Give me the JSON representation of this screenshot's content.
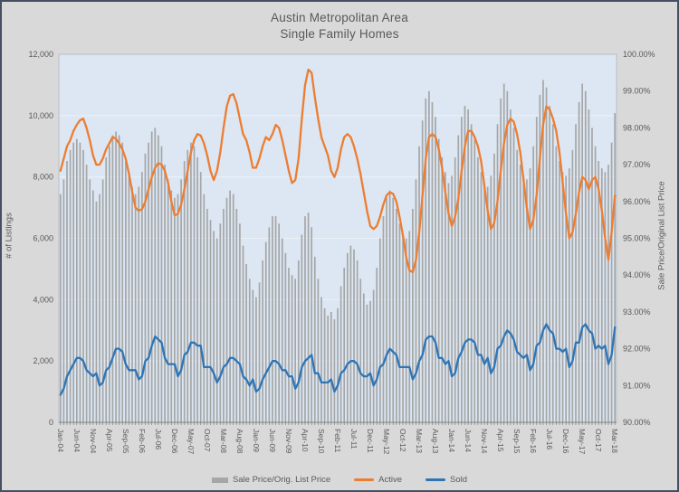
{
  "title": {
    "line1": "Austin Metropolitan Area",
    "line2": "Single Family Homes"
  },
  "colors": {
    "page_bg": "#D9D9D9",
    "frame": "#445062",
    "plot_bg": "#DCE7F3",
    "grid": "#EBF1F8",
    "plot_border": "#B9BEC6",
    "axis_line": "#7F7F7F",
    "text": "#595959",
    "bars": "#A6A6A6",
    "active_line": "#ED7D31",
    "sold_line": "#2E75B6"
  },
  "legend": {
    "bars_label": "Sale Price/Orig. List Price",
    "active_label": "Active",
    "sold_label": "Sold"
  },
  "chart_data": {
    "type": "combo (bar + 2 lines)",
    "left_axis": {
      "title": "# of Listings",
      "min": 0,
      "max": 12000,
      "step": 2000,
      "tick_labels": [
        "0",
        "2,000",
        "4,000",
        "6,000",
        "8,000",
        "10,000",
        "12,000"
      ]
    },
    "right_axis": {
      "title": "Sale Price/Original List Price",
      "min": 90,
      "max": 100,
      "step": 1,
      "tick_labels": [
        "90.00%",
        "91.00%",
        "92.00%",
        "93.00%",
        "94.00%",
        "95.00%",
        "96.00%",
        "97.00%",
        "98.00%",
        "99.00%",
        "100.00%"
      ]
    },
    "x_axis": {
      "n_points": 171,
      "label_every": 5,
      "tick_labels": [
        "Jan-04",
        "Jun-04",
        "Nov-04",
        "Apr-05",
        "Sep-05",
        "Feb-06",
        "Jul-06",
        "Dec-06",
        "May-07",
        "Oct-07",
        "Mar-08",
        "Aug-08",
        "Jan-09",
        "Jun-09",
        "Nov-09",
        "Apr-10",
        "Sep-10",
        "Feb-11",
        "Jul-11",
        "Dec-11",
        "May-12",
        "Oct-12",
        "Mar-13",
        "Aug-13",
        "Jan-14",
        "Jun-14",
        "Nov-14",
        "Apr-15",
        "Sep-15",
        "Feb-16",
        "Jul-16",
        "Dec-16",
        "May-17",
        "Oct-17",
        "Mar-18"
      ]
    },
    "grid": "horizontal only",
    "legend_position": "bottom center",
    "series": [
      {
        "name": "Sale Price/Orig. List Price",
        "type": "bar",
        "axis": "right",
        "unit": "%",
        "values": [
          96.2,
          96.6,
          97.1,
          97.4,
          97.6,
          97.7,
          97.6,
          97.4,
          97.0,
          96.6,
          96.3,
          96.0,
          96.2,
          96.6,
          97.2,
          97.5,
          97.8,
          97.9,
          97.8,
          97.6,
          97.1,
          96.7,
          96.4,
          96.2,
          96.4,
          96.8,
          97.3,
          97.6,
          97.9,
          98.0,
          97.8,
          97.5,
          97.0,
          96.6,
          96.3,
          96.1,
          96.2,
          96.6,
          97.1,
          97.4,
          97.6,
          97.5,
          97.2,
          96.8,
          96.2,
          95.8,
          95.5,
          95.2,
          95.0,
          95.4,
          95.8,
          96.1,
          96.3,
          96.2,
          95.8,
          95.4,
          94.8,
          94.3,
          93.9,
          93.6,
          93.4,
          93.8,
          94.4,
          94.9,
          95.3,
          95.6,
          95.6,
          95.4,
          95.0,
          94.6,
          94.2,
          94.0,
          93.9,
          94.4,
          95.1,
          95.6,
          95.7,
          95.3,
          94.5,
          93.9,
          93.4,
          93.1,
          92.9,
          93.0,
          92.8,
          93.1,
          93.7,
          94.2,
          94.6,
          94.8,
          94.7,
          94.4,
          93.9,
          93.5,
          93.2,
          93.3,
          93.6,
          94.2,
          95.0,
          95.6,
          96.1,
          96.3,
          96.1,
          95.8,
          95.4,
          95.1,
          95.0,
          95.2,
          95.8,
          96.6,
          97.5,
          98.2,
          98.8,
          99.0,
          98.7,
          98.3,
          97.7,
          97.2,
          96.8,
          96.5,
          96.7,
          97.2,
          97.8,
          98.3,
          98.6,
          98.5,
          98.1,
          97.7,
          97.2,
          96.8,
          96.5,
          96.4,
          96.7,
          97.3,
          98.1,
          98.8,
          99.2,
          99.0,
          98.5,
          98.0,
          97.4,
          97.0,
          96.7,
          96.6,
          96.9,
          97.5,
          98.3,
          98.9,
          99.3,
          99.1,
          98.6,
          98.1,
          97.5,
          97.1,
          96.8,
          96.7,
          96.9,
          97.4,
          98.1,
          98.7,
          99.2,
          99.0,
          98.5,
          98.0,
          97.5,
          97.1,
          96.9,
          96.8,
          97.0,
          97.6,
          98.4
        ]
      },
      {
        "name": "Active",
        "type": "line",
        "axis": "left",
        "unit": "listings",
        "values": [
          8200,
          8600,
          9000,
          9200,
          9500,
          9700,
          9850,
          9900,
          9600,
          9200,
          8700,
          8400,
          8400,
          8600,
          8900,
          9100,
          9300,
          9250,
          9100,
          8900,
          8600,
          8100,
          7500,
          7000,
          6900,
          6950,
          7200,
          7600,
          8000,
          8300,
          8450,
          8400,
          8200,
          7800,
          7200,
          6750,
          6800,
          7100,
          7600,
          8200,
          8800,
          9200,
          9400,
          9350,
          9100,
          8700,
          8200,
          7900,
          8200,
          8800,
          9600,
          10300,
          10650,
          10700,
          10400,
          9900,
          9400,
          9200,
          8800,
          8300,
          8300,
          8600,
          9000,
          9300,
          9200,
          9400,
          9700,
          9600,
          9200,
          8700,
          8200,
          7800,
          7900,
          8600,
          9900,
          11000,
          11500,
          11400,
          10600,
          9900,
          9300,
          9000,
          8700,
          8200,
          8000,
          8300,
          8900,
          9300,
          9400,
          9300,
          9000,
          8600,
          8100,
          7500,
          6900,
          6400,
          6300,
          6400,
          6700,
          7100,
          7400,
          7500,
          7450,
          7200,
          6700,
          6100,
          5400,
          4950,
          4900,
          5300,
          6200,
          7400,
          8600,
          9300,
          9400,
          9300,
          8900,
          8300,
          7500,
          6800,
          6400,
          6700,
          7300,
          8200,
          9000,
          9500,
          9500,
          9300,
          9000,
          8500,
          7700,
          6900,
          6300,
          6500,
          7200,
          8200,
          9100,
          9700,
          9900,
          9800,
          9400,
          8800,
          7900,
          7000,
          6300,
          6600,
          7400,
          8600,
          9700,
          10300,
          10200,
          9900,
          9500,
          8800,
          7800,
          6800,
          6000,
          6200,
          6800,
          7500,
          8000,
          7900,
          7600,
          7900,
          8000,
          7600,
          6900,
          6000,
          5300,
          6200,
          7400
        ]
      },
      {
        "name": "Sold",
        "type": "line",
        "axis": "left",
        "unit": "listings",
        "values": [
          900,
          1100,
          1500,
          1700,
          1900,
          2100,
          2100,
          2000,
          1700,
          1600,
          1500,
          1600,
          1200,
          1300,
          1700,
          1800,
          2100,
          2400,
          2400,
          2300,
          1900,
          1700,
          1700,
          1700,
          1400,
          1500,
          2000,
          2100,
          2500,
          2800,
          2700,
          2600,
          2100,
          1900,
          1900,
          1900,
          1500,
          1700,
          2200,
          2300,
          2600,
          2600,
          2500,
          2500,
          1800,
          1800,
          1800,
          1600,
          1300,
          1500,
          1800,
          1900,
          2100,
          2100,
          2000,
          1900,
          1500,
          1400,
          1200,
          1400,
          1000,
          1100,
          1400,
          1600,
          1800,
          2000,
          2000,
          1900,
          1700,
          1700,
          1500,
          1500,
          1100,
          1300,
          1800,
          2000,
          2100,
          2200,
          1600,
          1600,
          1300,
          1300,
          1300,
          1400,
          1000,
          1200,
          1600,
          1700,
          1900,
          2000,
          2000,
          1900,
          1600,
          1500,
          1500,
          1600,
          1200,
          1400,
          1800,
          1900,
          2200,
          2400,
          2300,
          2200,
          1800,
          1800,
          1800,
          1800,
          1400,
          1600,
          2000,
          2200,
          2700,
          2800,
          2800,
          2600,
          2100,
          2100,
          1900,
          2000,
          1500,
          1600,
          2100,
          2300,
          2600,
          2700,
          2700,
          2600,
          2200,
          2200,
          1900,
          2100,
          1600,
          1800,
          2400,
          2500,
          2800,
          3000,
          2900,
          2700,
          2300,
          2200,
          2100,
          2200,
          1700,
          1900,
          2500,
          2600,
          3000,
          3200,
          3000,
          2900,
          2400,
          2400,
          2300,
          2400,
          1800,
          2000,
          2600,
          2600,
          3100,
          3200,
          3000,
          2900,
          2400,
          2500,
          2400,
          2500,
          1900,
          2200,
          3100
        ]
      }
    ]
  }
}
